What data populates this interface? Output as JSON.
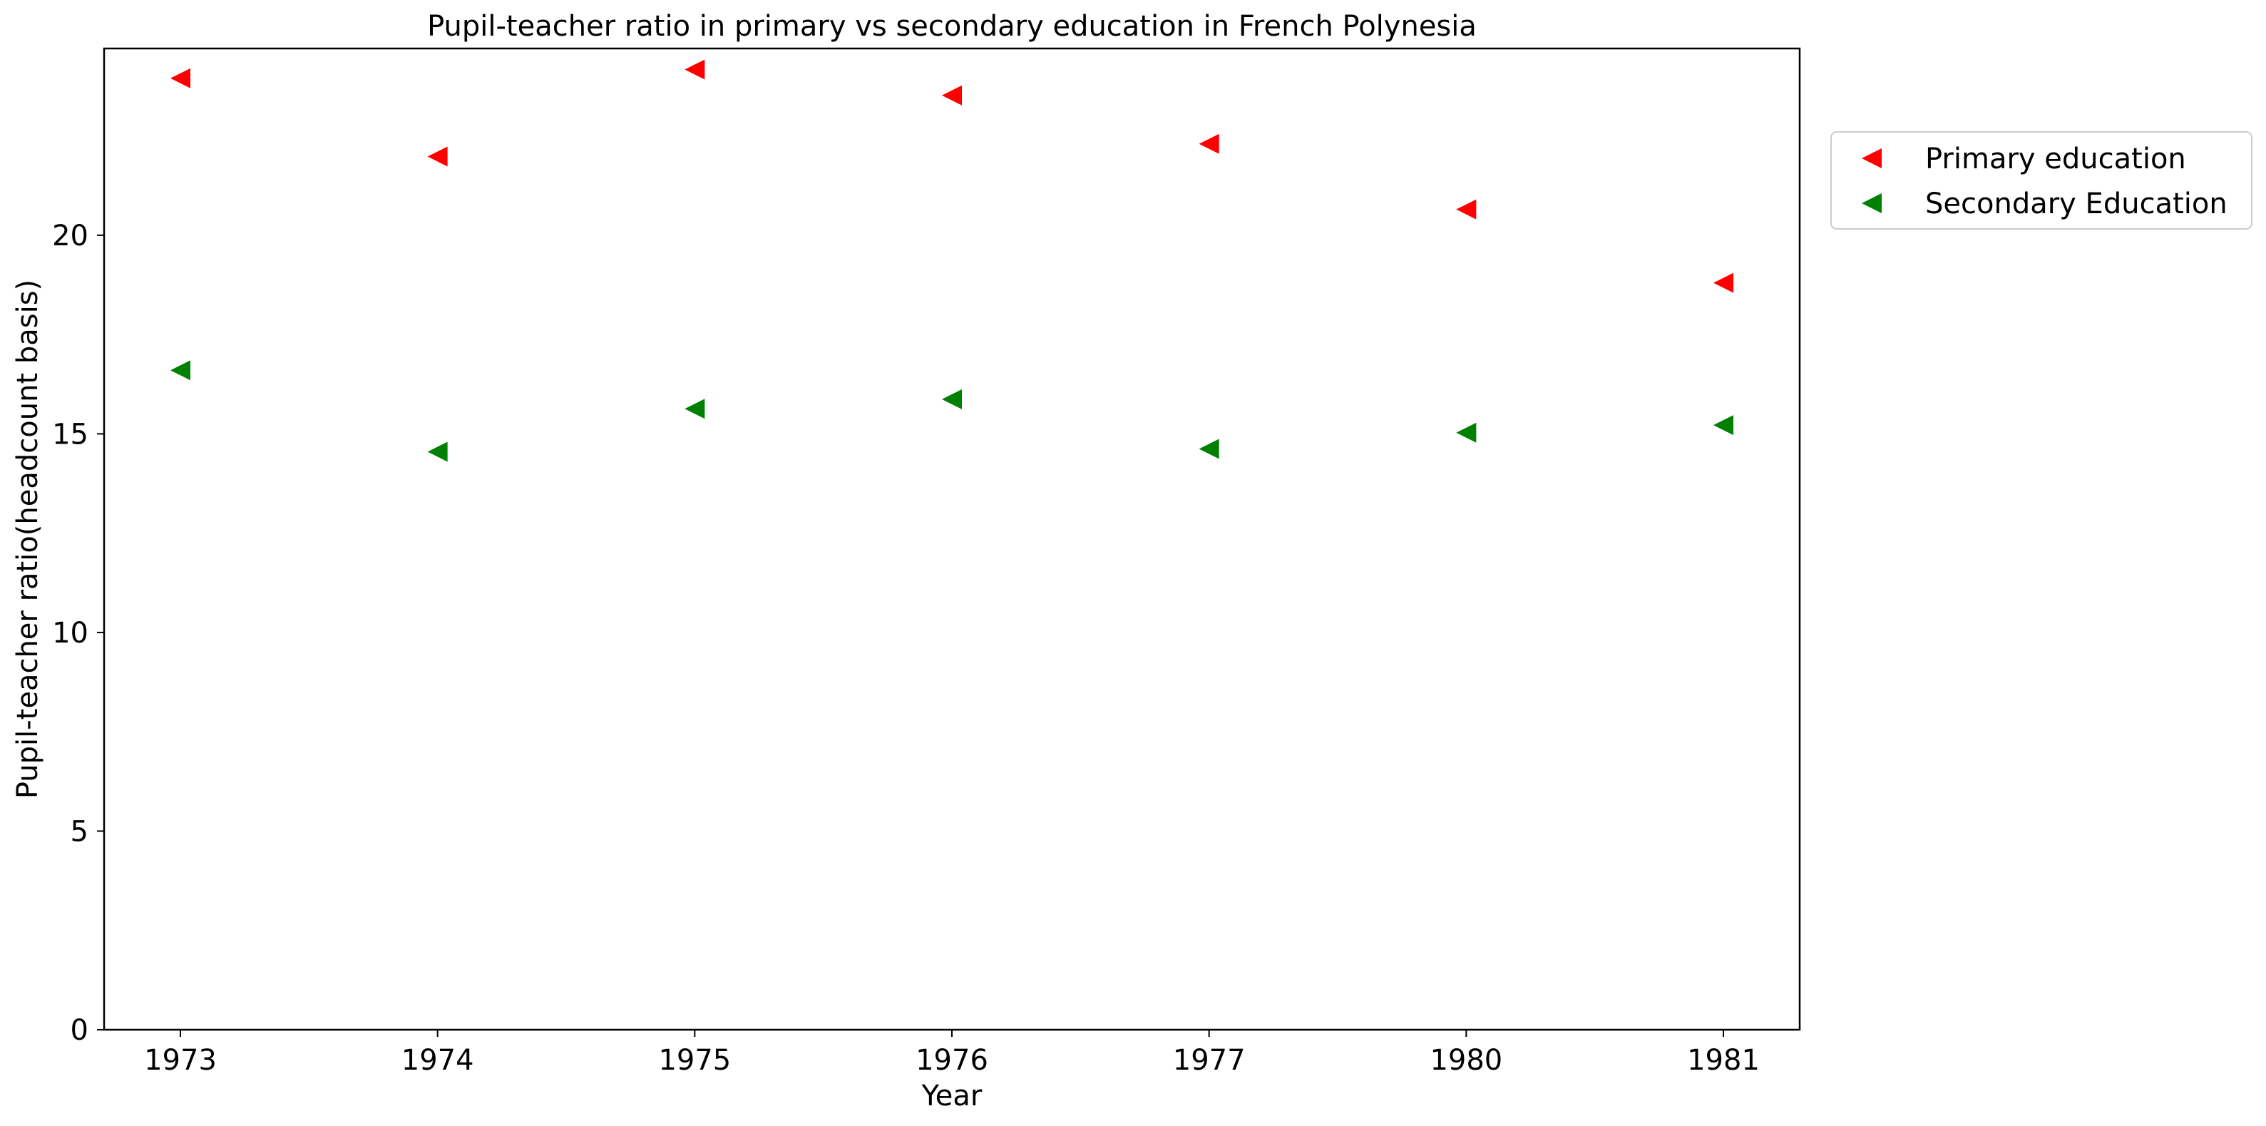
{
  "chart_data": {
    "type": "scatter",
    "title": "Pupil-teacher ratio in primary vs secondary education in French Polynesia",
    "xlabel": "Year",
    "ylabel": "Pupil-teacher ratio(headcount basis)",
    "categories": [
      "1973",
      "1974",
      "1975",
      "1976",
      "1977",
      "1980",
      "1981"
    ],
    "ylim": [
      0,
      24.7
    ],
    "yticks": [
      "0",
      "5",
      "10",
      "15",
      "20"
    ],
    "grid": false,
    "legend_position": "outside-top-right",
    "marker": "triangle-left",
    "series": [
      {
        "name": "Primary education",
        "color": "#ff0000",
        "values": [
          23.95,
          21.98,
          24.17,
          23.52,
          22.3,
          20.65,
          18.8
        ]
      },
      {
        "name": "Secondary Education",
        "color": "#008000",
        "values": [
          16.6,
          14.55,
          15.63,
          15.87,
          14.62,
          15.03,
          15.22
        ]
      }
    ]
  }
}
